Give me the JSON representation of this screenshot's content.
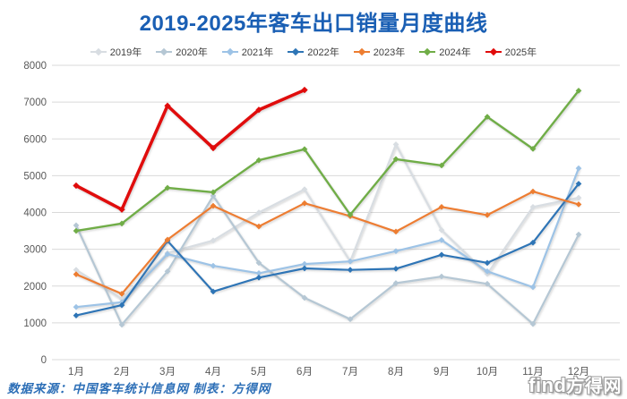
{
  "title": "2019-2025年客车出口销量月度曲线",
  "footer": {
    "source": "数据来源：中国客车统计信息网  制表：方得网"
  },
  "watermark": {
    "latin": "find",
    "cjk": "方得网"
  },
  "colors": {
    "title_blue": "#1a5fb4",
    "footer_blue": "#2d6fb7",
    "gridline": "#d9d9d9",
    "axis_text": "#595959",
    "legend_text": "#404040",
    "background": "#ffffff"
  },
  "chart_data": {
    "type": "line",
    "title": "2019-2025年客车出口销量月度曲线",
    "xlabel": "",
    "ylabel": "",
    "categories": [
      "1月",
      "2月",
      "3月",
      "4月",
      "5月",
      "6月",
      "7月",
      "8月",
      "9月",
      "10月",
      "11月",
      "12月"
    ],
    "y_ticks": [
      0,
      1000,
      2000,
      3000,
      4000,
      5000,
      6000,
      7000,
      8000
    ],
    "ylim": [
      0,
      8000
    ],
    "grid": true,
    "legend_position": "top",
    "series": [
      {
        "name": "2019年",
        "color": "#d8dde2",
        "line_width": 2.2,
        "values": [
          2440,
          1650,
          2900,
          3240,
          4000,
          4630,
          2670,
          5850,
          3520,
          2330,
          4150,
          4400
        ]
      },
      {
        "name": "2020年",
        "color": "#b5c7d4",
        "line_width": 2.2,
        "values": [
          3650,
          950,
          2400,
          4450,
          2630,
          1680,
          1100,
          2080,
          2260,
          2060,
          970,
          3400
        ]
      },
      {
        "name": "2021年",
        "color": "#9dc3e6",
        "line_width": 2.2,
        "values": [
          1430,
          1560,
          2870,
          2550,
          2350,
          2600,
          2670,
          2950,
          3250,
          2400,
          1970,
          5200
        ]
      },
      {
        "name": "2022年",
        "color": "#2e75b6",
        "line_width": 2.2,
        "values": [
          1200,
          1480,
          3230,
          1850,
          2230,
          2480,
          2440,
          2470,
          2850,
          2630,
          3180,
          4780
        ]
      },
      {
        "name": "2023年",
        "color": "#ed7d31",
        "line_width": 2.2,
        "values": [
          2320,
          1790,
          3260,
          4180,
          3620,
          4250,
          3900,
          3480,
          4150,
          3930,
          4570,
          4220
        ]
      },
      {
        "name": "2024年",
        "color": "#70ad47",
        "line_width": 2.4,
        "values": [
          3500,
          3700,
          4670,
          4550,
          5420,
          5720,
          3940,
          5450,
          5280,
          6600,
          5730,
          7310
        ]
      },
      {
        "name": "2025年",
        "color": "#e00b0b",
        "line_width": 3.6,
        "values": [
          4730,
          4080,
          6900,
          5750,
          6790,
          7330
        ]
      }
    ]
  }
}
